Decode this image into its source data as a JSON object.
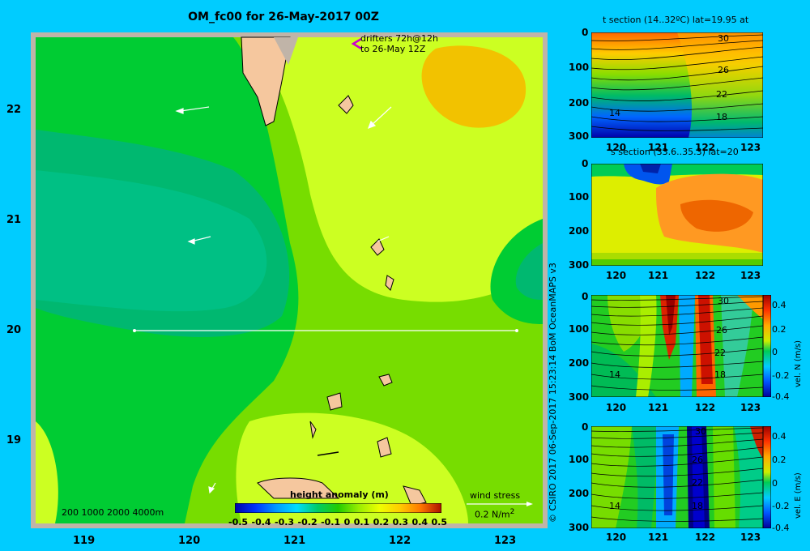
{
  "title": "OM_fc00 for 26-May-2017 00Z",
  "map": {
    "lat_ticks": [
      "22",
      "21",
      "20",
      "19"
    ],
    "lon_ticks": [
      "119",
      "120",
      "121",
      "122",
      "123"
    ],
    "drifters_line1": "drifters 72h@12h",
    "drifters_line2": "to 26-May 12Z",
    "depth_contours": "200  1000  2000  4000m",
    "colorbar_title": "height anomaly  (m)",
    "colorbar_ticks": [
      "-0.5",
      "-0.4",
      "-0.3",
      "-0.2",
      "-0.1",
      "0",
      "0.1",
      "0.2",
      "0.3",
      "0.4",
      "0.5"
    ],
    "wind_label": "wind stress",
    "wind_scale": "0.2 N/m",
    "wind_exp": "2",
    "colors": {
      "frame": "#c0b4a8",
      "land": "#f5c79e",
      "deep": "#00b870",
      "mid": "#00cc33",
      "light": "#77dd00",
      "yellow": "#ccff22",
      "orange": "#f2c200"
    }
  },
  "panels": [
    {
      "title": "t section (14..32ºC) lat=19.95 at",
      "y_ticks": [
        "0",
        "100",
        "200",
        "300"
      ],
      "x_ticks": [
        "120",
        "121",
        "122",
        "123"
      ],
      "labels": [
        "30",
        "26",
        "22",
        "18",
        "14"
      ]
    },
    {
      "title": "s section (33.6..35.3) lat=20",
      "y_ticks": [
        "0",
        "100",
        "200",
        "300"
      ],
      "x_ticks": [
        "120",
        "121",
        "122",
        "123"
      ],
      "labels": []
    },
    {
      "title": "",
      "y_ticks": [
        "0",
        "100",
        "200",
        "300"
      ],
      "x_ticks": [
        "120",
        "121",
        "122",
        "123"
      ],
      "labels": [
        "30",
        "26",
        "22",
        "18",
        "14"
      ],
      "cb_ticks": [
        "0.4",
        "0.2",
        "0",
        "-0.2",
        "-0.4"
      ],
      "units": "vel. N  (m/s)"
    },
    {
      "title": "",
      "y_ticks": [
        "0",
        "100",
        "200",
        "300"
      ],
      "x_ticks": [
        "120",
        "121",
        "122",
        "123"
      ],
      "labels": [
        "30",
        "26",
        "22",
        "18",
        "14"
      ],
      "cb_ticks": [
        "0.4",
        "0.2",
        "0",
        "-0.2",
        "-0.4"
      ],
      "units": "vel. E  (m/s)"
    }
  ],
  "credit": "© CSIRO 2017   06-Sep-2017 15:23:14 BoM OceanMAPS v3"
}
